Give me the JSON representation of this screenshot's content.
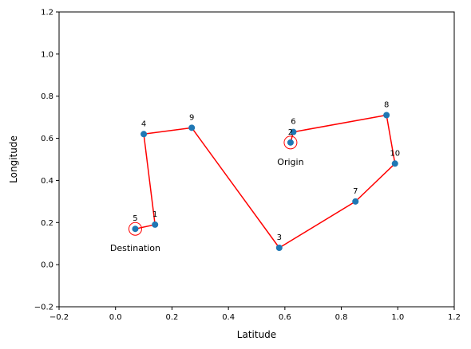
{
  "chart_data": {
    "type": "scatter",
    "xlabel": "Latitude",
    "ylabel": "Longitude",
    "xlim": [
      -0.2,
      1.2
    ],
    "ylim": [
      -0.2,
      1.2
    ],
    "xticks": [
      "−0.2",
      "0.0",
      "0.2",
      "0.4",
      "0.6",
      "0.8",
      "1.0",
      "1.2"
    ],
    "yticks": [
      "−0.2",
      "0.0",
      "0.2",
      "0.4",
      "0.6",
      "0.8",
      "1.0",
      "1.2"
    ],
    "grid": false,
    "points": [
      {
        "label": "1",
        "x": 0.14,
        "y": 0.19
      },
      {
        "label": "2",
        "x": 0.62,
        "y": 0.58
      },
      {
        "label": "3",
        "x": 0.58,
        "y": 0.08
      },
      {
        "label": "4",
        "x": 0.1,
        "y": 0.62
      },
      {
        "label": "5",
        "x": 0.07,
        "y": 0.17
      },
      {
        "label": "6",
        "x": 0.63,
        "y": 0.63
      },
      {
        "label": "7",
        "x": 0.85,
        "y": 0.3
      },
      {
        "label": "8",
        "x": 0.96,
        "y": 0.71
      },
      {
        "label": "9",
        "x": 0.27,
        "y": 0.65
      },
      {
        "label": "10",
        "x": 0.99,
        "y": 0.48
      }
    ],
    "route": [
      "2",
      "6",
      "8",
      "10",
      "7",
      "3",
      "9",
      "4",
      "1",
      "5"
    ],
    "origin": {
      "point": "2",
      "text": "Origin"
    },
    "destination": {
      "point": "5",
      "text": "Destination"
    },
    "point_color": "#1f77b4",
    "route_color": "#ff0000"
  }
}
